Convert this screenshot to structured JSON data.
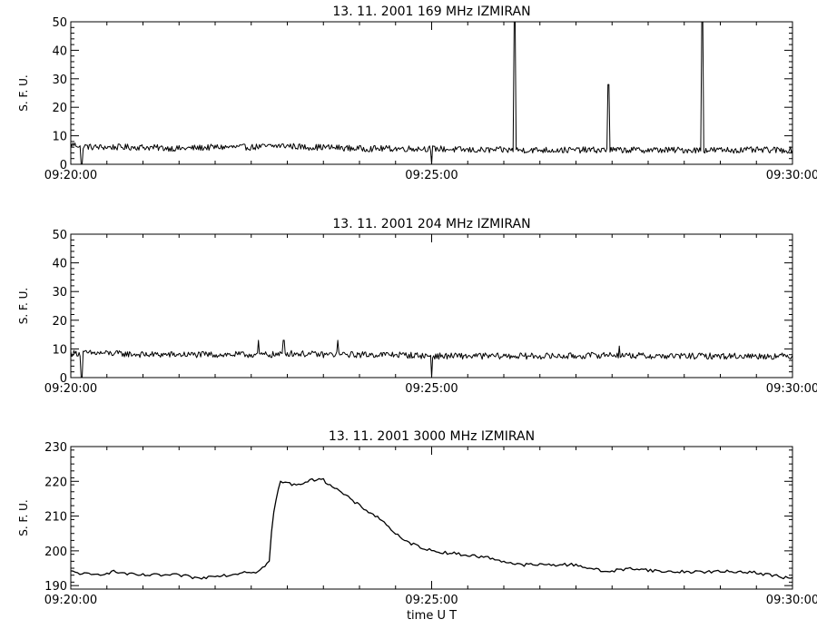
{
  "figure": {
    "xlabel": "time   U T",
    "colors": {
      "background": "#ffffff",
      "line": "#000000"
    }
  },
  "chart_data": [
    {
      "type": "line",
      "title": "13.  11.  2001    169  MHz    IZMIRAN",
      "ylabel": "S. F. U.",
      "xlabel": "",
      "ylim": [
        0,
        50
      ],
      "yticks": [
        0,
        10,
        20,
        30,
        40,
        50
      ],
      "xticks": [
        "09:20:00",
        "09:25:00",
        "09:30:00"
      ],
      "xlim_minutes": [
        0,
        10
      ],
      "grid": false,
      "series": [
        {
          "x": [
            0.0,
            0.3,
            0.5,
            1.0,
            1.5,
            2.0,
            2.5,
            2.9,
            3.0,
            3.25,
            3.5,
            4.0,
            4.5,
            5.0,
            5.5,
            6.0,
            6.5,
            7.0,
            7.5,
            8.0,
            8.5,
            9.0,
            9.5,
            10.0
          ],
          "values": [
            7,
            6,
            6,
            6,
            5.5,
            6,
            6,
            6.5,
            6.5,
            6,
            6,
            5.5,
            5.5,
            5.5,
            5,
            5,
            5,
            5,
            5,
            5,
            5,
            5,
            5,
            5
          ],
          "dips": [
            {
              "x": 0.15,
              "value": 0
            },
            {
              "x": 5.0,
              "value": 0
            }
          ],
          "spikes": [
            {
              "x": 6.15,
              "value": 50
            },
            {
              "x": 7.45,
              "value": 28
            },
            {
              "x": 8.75,
              "value": 50
            }
          ]
        }
      ]
    },
    {
      "type": "line",
      "title": "13.  11.  2001    204  MHz    IZMIRAN",
      "ylabel": "S. F. U.",
      "xlabel": "",
      "ylim": [
        0,
        50
      ],
      "yticks": [
        0,
        10,
        20,
        30,
        40,
        50
      ],
      "xticks": [
        "09:20:00",
        "09:25:00",
        "09:30:00"
      ],
      "xlim_minutes": [
        0,
        10
      ],
      "grid": false,
      "series": [
        {
          "x": [
            0.0,
            0.5,
            1.0,
            1.5,
            2.0,
            2.5,
            2.9,
            3.0,
            3.5,
            4.0,
            4.5,
            5.0,
            5.5,
            6.0,
            6.5,
            7.0,
            7.5,
            8.0,
            8.5,
            9.0,
            9.5,
            10.0
          ],
          "values": [
            8.5,
            8.5,
            8,
            8,
            8,
            8,
            8,
            8.5,
            8,
            8,
            8,
            7.5,
            7.5,
            7.5,
            7.5,
            7.5,
            8,
            7.5,
            7.5,
            7.5,
            7.5,
            7.5
          ],
          "dips": [
            {
              "x": 0.15,
              "value": 0
            },
            {
              "x": 5.0,
              "value": 0
            }
          ],
          "spikes": [
            {
              "x": 2.6,
              "value": 13
            },
            {
              "x": 2.95,
              "value": 13
            },
            {
              "x": 3.7,
              "value": 13
            },
            {
              "x": 7.6,
              "value": 11
            }
          ]
        }
      ]
    },
    {
      "type": "line",
      "title": "13.  11.  2001    3000  MHz    IZMIRAN",
      "ylabel": "S. F. U.",
      "xlabel": "time   U T",
      "ylim": [
        189,
        230
      ],
      "yticks": [
        190,
        200,
        210,
        220,
        230
      ],
      "xticks": [
        "09:20:00",
        "09:25:00",
        "09:30:00"
      ],
      "xlim_minutes": [
        0,
        10
      ],
      "grid": false,
      "series": [
        {
          "x": [
            0.0,
            0.3,
            0.6,
            0.9,
            1.2,
            1.5,
            1.8,
            2.0,
            2.2,
            2.4,
            2.6,
            2.75,
            2.8,
            2.9,
            3.1,
            3.3,
            3.45,
            3.6,
            3.8,
            4.0,
            4.3,
            4.6,
            5.0,
            5.4,
            5.8,
            6.2,
            6.6,
            7.0,
            7.4,
            7.8,
            8.2,
            8.6,
            9.0,
            9.4,
            9.7,
            10.0
          ],
          "values": [
            194,
            193,
            194,
            193,
            193,
            193,
            192,
            193,
            193,
            194,
            194,
            197,
            210,
            220,
            219,
            220,
            221,
            219,
            216,
            213,
            209,
            203,
            200,
            199,
            198,
            196,
            196,
            196,
            194,
            195,
            194,
            194,
            194,
            194,
            193,
            192
          ],
          "dips": [],
          "spikes": []
        }
      ]
    }
  ]
}
